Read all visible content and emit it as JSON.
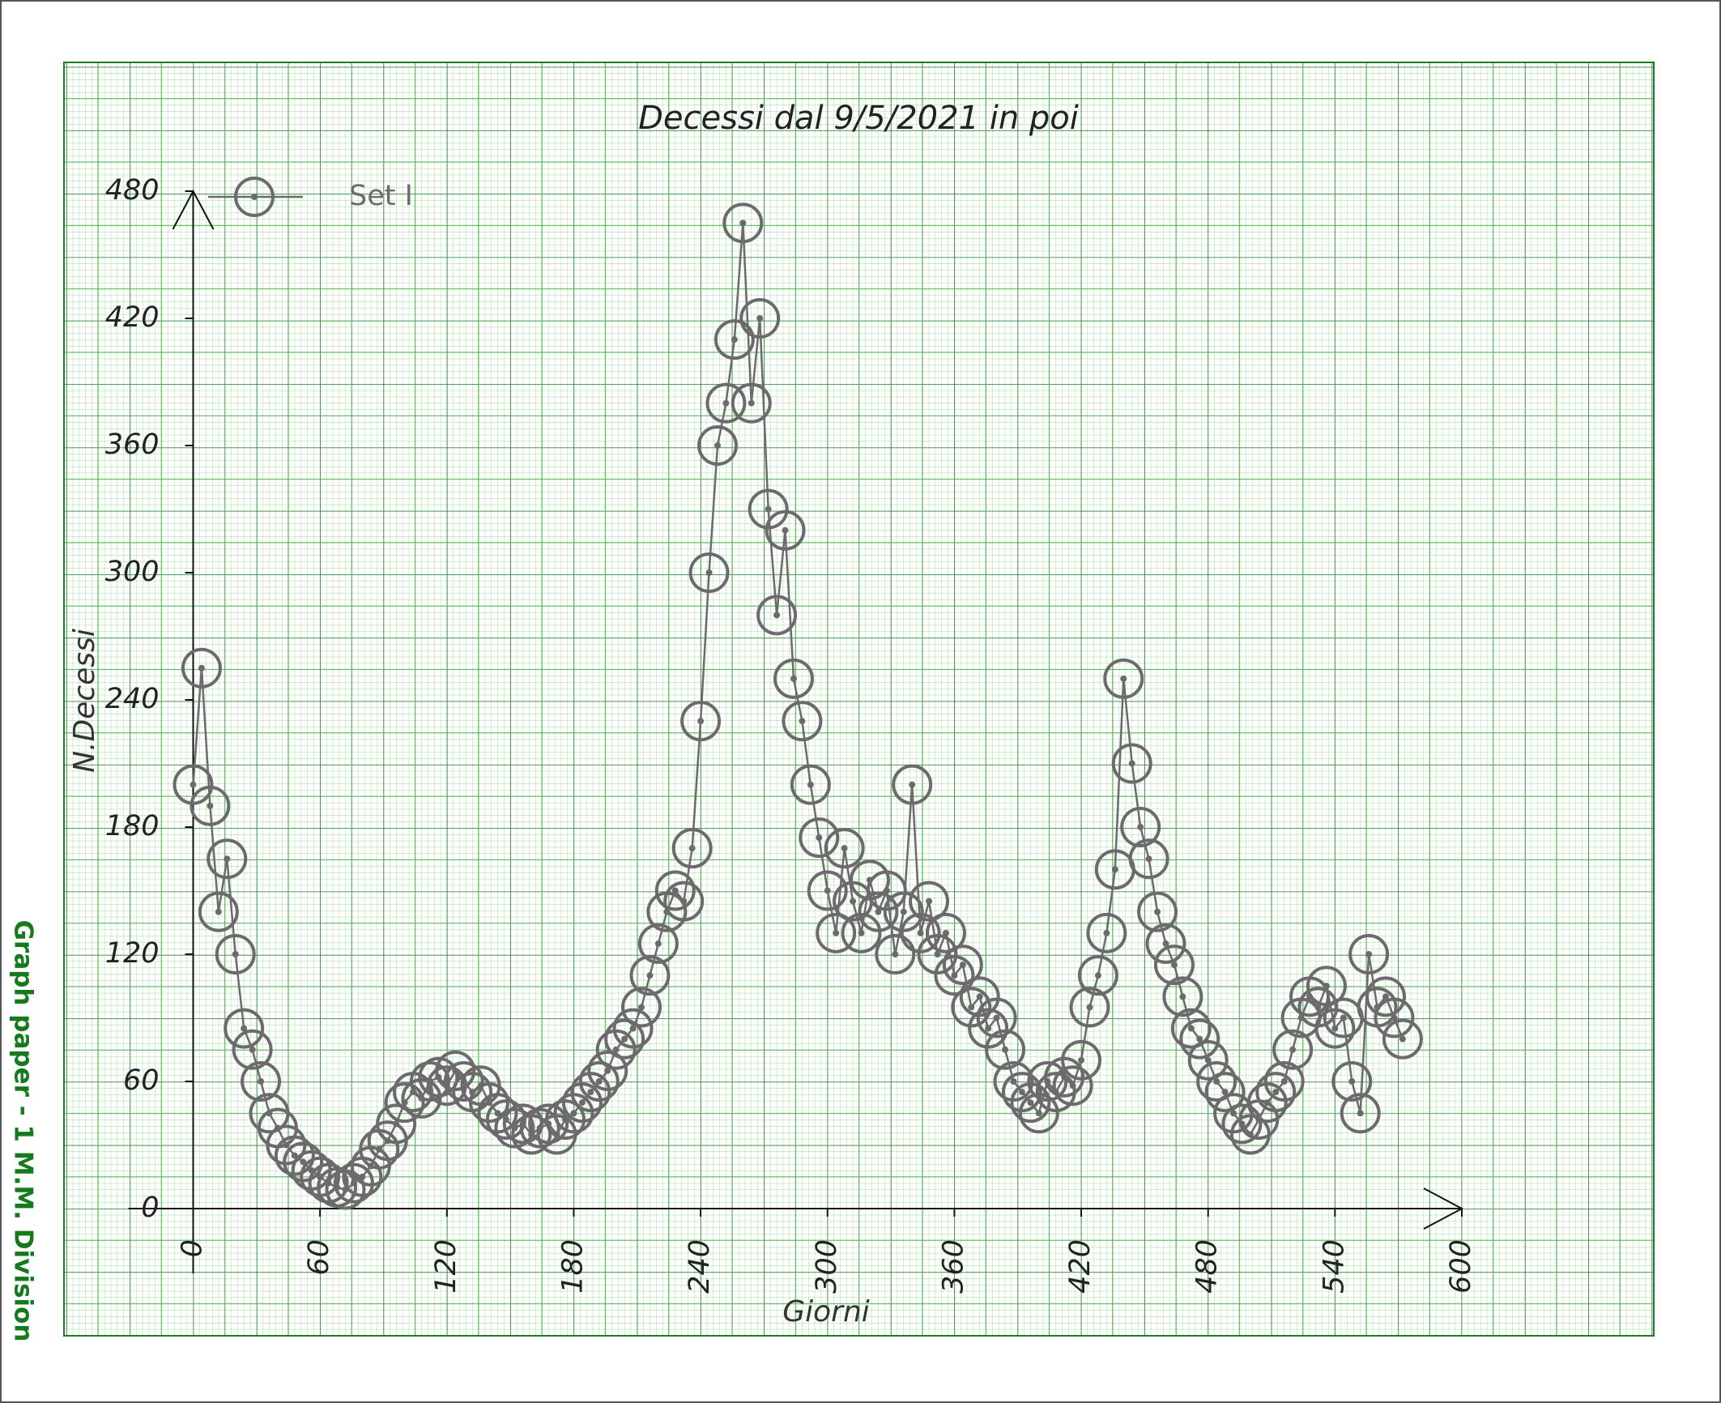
{
  "chart_data": {
    "type": "line",
    "title": "Decessi dal 9/5/2021 in poi",
    "x_label": "Giorni",
    "y_label": "N.Decessi",
    "side_label": "Graph paper - 1 M.M. Division",
    "xlim": [
      0,
      600
    ],
    "ylim": [
      0,
      480
    ],
    "xticks": [
      0,
      60,
      120,
      180,
      240,
      300,
      360,
      420,
      480,
      540,
      600
    ],
    "yticks": [
      0,
      60,
      120,
      180,
      240,
      300,
      360,
      420,
      480
    ],
    "grid": true,
    "legend": "upper left",
    "series": [
      {
        "name": "Set I",
        "color": "#6d6a6e",
        "x": [
          0,
          4,
          8,
          12,
          16,
          20,
          24,
          28,
          32,
          36,
          40,
          44,
          48,
          52,
          56,
          60,
          64,
          68,
          72,
          76,
          80,
          84,
          88,
          92,
          96,
          100,
          104,
          108,
          112,
          116,
          120,
          124,
          128,
          132,
          136,
          140,
          144,
          148,
          152,
          156,
          160,
          164,
          168,
          172,
          176,
          180,
          184,
          188,
          192,
          196,
          200,
          204,
          208,
          212,
          216,
          220,
          224,
          228,
          232,
          236,
          240,
          244,
          248,
          252,
          256,
          260,
          264,
          268,
          272,
          276,
          280,
          284,
          288,
          292,
          296,
          300,
          304,
          308,
          312,
          316,
          320,
          324,
          328,
          332,
          336,
          340,
          344,
          348,
          352,
          356,
          360,
          364,
          368,
          372,
          376,
          380,
          384,
          388,
          392,
          396,
          400,
          404,
          408,
          412,
          416,
          420,
          424,
          428,
          432,
          436,
          440,
          444,
          448,
          452,
          456,
          460,
          464,
          468,
          472,
          476,
          480,
          484,
          488,
          492,
          496,
          500,
          504,
          508,
          512,
          516,
          520,
          524,
          528,
          532,
          536,
          540,
          544,
          548,
          552,
          556,
          560,
          564,
          568,
          572
        ],
        "values": [
          200,
          255,
          190,
          140,
          165,
          120,
          85,
          75,
          60,
          45,
          38,
          30,
          25,
          22,
          18,
          15,
          12,
          10,
          9,
          12,
          15,
          20,
          28,
          32,
          40,
          50,
          55,
          52,
          60,
          62,
          58,
          65,
          60,
          55,
          58,
          50,
          45,
          42,
          38,
          40,
          35,
          38,
          40,
          35,
          42,
          45,
          50,
          55,
          60,
          65,
          75,
          80,
          85,
          95,
          110,
          125,
          140,
          150,
          145,
          170,
          230,
          300,
          360,
          380,
          410,
          465,
          380,
          420,
          330,
          280,
          320,
          250,
          230,
          200,
          175,
          150,
          130,
          170,
          145,
          130,
          155,
          140,
          150,
          120,
          140,
          200,
          130,
          145,
          120,
          130,
          110,
          115,
          95,
          100,
          85,
          90,
          75,
          60,
          55,
          50,
          45,
          60,
          55,
          62,
          58,
          70,
          95,
          110,
          130,
          160,
          250,
          210,
          180,
          165,
          140,
          125,
          115,
          100,
          85,
          80,
          70,
          60,
          55,
          45,
          40,
          35,
          42,
          50,
          55,
          60,
          75,
          90,
          100,
          95,
          105,
          85,
          90,
          60,
          45,
          120,
          95,
          100,
          90,
          80
        ]
      }
    ]
  }
}
